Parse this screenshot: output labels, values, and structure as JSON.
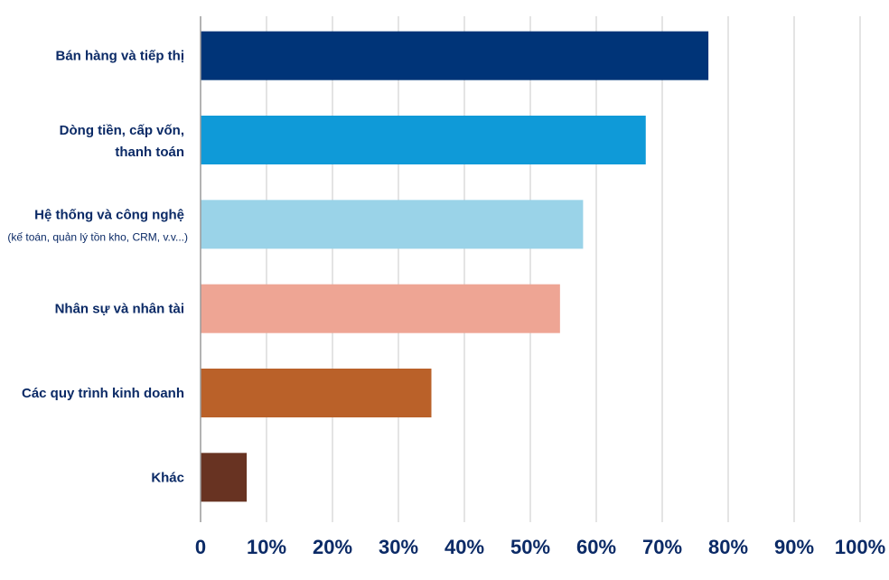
{
  "chart_data": {
    "type": "bar",
    "orientation": "horizontal",
    "categories": [
      {
        "label": "Bán hàng và tiếp thị",
        "sub": ""
      },
      {
        "label": "Dòng tiền, cấp vốn,",
        "label2": "thanh toán",
        "sub": ""
      },
      {
        "label": "Hệ thống và công nghệ",
        "sub": "(kế toán, quản lý tồn kho, CRM, v.v...)"
      },
      {
        "label": "Nhân sự và nhân tài",
        "sub": ""
      },
      {
        "label": "Các quy trình kinh doanh",
        "sub": ""
      },
      {
        "label": "Khác",
        "sub": ""
      }
    ],
    "values": [
      77,
      67.5,
      58,
      54.5,
      35,
      7
    ],
    "colors": [
      "#003478",
      "#0f9ad8",
      "#9ad3e8",
      "#eea594",
      "#ba6129",
      "#683322"
    ],
    "xlim": [
      0,
      100
    ],
    "xticks": [
      "0",
      "10%",
      "20%",
      "30%",
      "40%",
      "50%",
      "60%",
      "70%",
      "80%",
      "90%",
      "100%"
    ],
    "grid": true,
    "legend": "none",
    "title": "",
    "xlabel": "",
    "ylabel": ""
  }
}
